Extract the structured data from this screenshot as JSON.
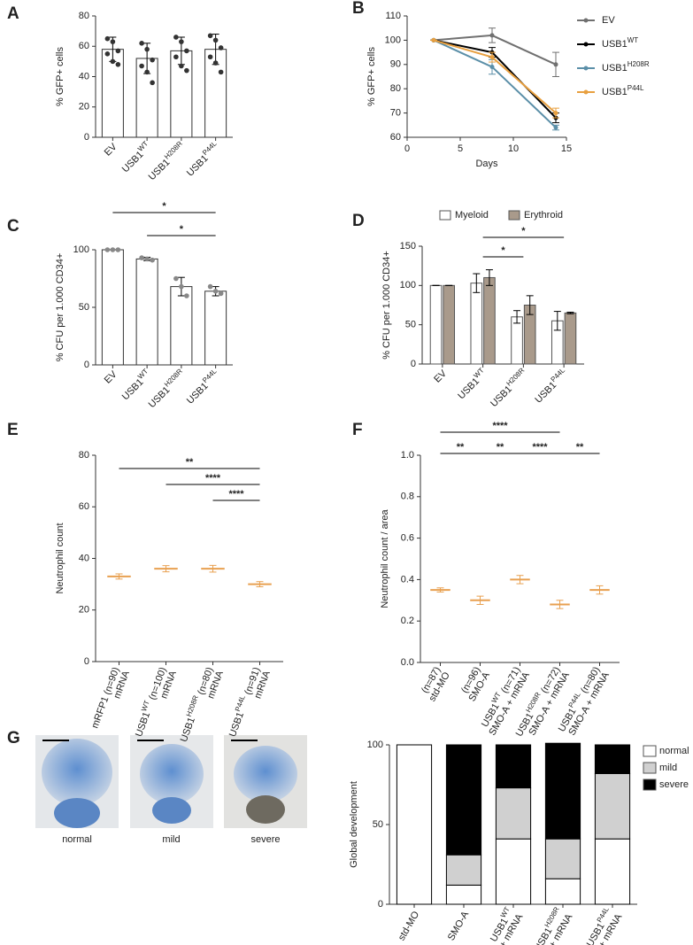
{
  "chart_data": [
    {
      "panel": "A",
      "type": "bar",
      "ylabel": "% GFP+ cells",
      "categories": [
        [
          [
            "EV"
          ]
        ],
        [
          [
            "USB1",
            {
              "sup": "WT"
            }
          ]
        ],
        [
          [
            "USB1",
            {
              "sup": "H208R"
            }
          ]
        ],
        [
          [
            "USB1",
            {
              "sup": "P44L"
            }
          ]
        ]
      ],
      "values": [
        58,
        52,
        57,
        58
      ],
      "errors": [
        8,
        10,
        9,
        10
      ],
      "points": [
        [
          65,
          63,
          57,
          55,
          50,
          48
        ],
        [
          62,
          58,
          51,
          47,
          43,
          36
        ],
        [
          66,
          63,
          57,
          53,
          47,
          44
        ],
        [
          67,
          64,
          59,
          53,
          49,
          43
        ]
      ],
      "color": "#ffffff",
      "point_color": "#333333",
      "ylim": [
        0,
        80
      ],
      "yticks": [
        0,
        20,
        40,
        60,
        80
      ]
    },
    {
      "panel": "B",
      "type": "line",
      "xlabel": "Days",
      "ylabel": "% GFP+ cells",
      "x": [
        2.5,
        8,
        14
      ],
      "xlim": [
        0,
        15
      ],
      "xticks": [
        0,
        5,
        10,
        15
      ],
      "ylim": [
        60,
        110
      ],
      "yticks": [
        60,
        70,
        80,
        90,
        100,
        110
      ],
      "series": [
        {
          "name": [
            "EV"
          ],
          "color": "#707070",
          "values": [
            100,
            102,
            90
          ],
          "errors": [
            0,
            3,
            5
          ]
        },
        {
          "name": [
            "USB1",
            {
              "sup": "WT"
            }
          ],
          "color": "#000000",
          "values": [
            100,
            95,
            68
          ],
          "errors": [
            0,
            2,
            2
          ]
        },
        {
          "name": [
            "USB1",
            {
              "sup": "H208R"
            }
          ],
          "color": "#5b8fa8",
          "values": [
            100,
            89,
            64
          ],
          "errors": [
            0,
            3,
            1
          ]
        },
        {
          "name": [
            "USB1",
            {
              "sup": "P44L"
            }
          ],
          "color": "#e8a040",
          "values": [
            100,
            93,
            70
          ],
          "errors": [
            0,
            2,
            2
          ]
        }
      ]
    },
    {
      "panel": "C",
      "type": "bar",
      "ylabel": "% CFU per 1.000 CD34+",
      "categories": [
        [
          [
            "EV"
          ]
        ],
        [
          [
            "USB1",
            {
              "sup": "WT"
            }
          ]
        ],
        [
          [
            "USB1",
            {
              "sup": "H208R"
            }
          ]
        ],
        [
          [
            "USB1",
            {
              "sup": "P44L"
            }
          ]
        ]
      ],
      "values": [
        100,
        92,
        68,
        64
      ],
      "errors": [
        0,
        1.5,
        8,
        4
      ],
      "points": [
        [
          100,
          100,
          100
        ],
        [
          93,
          92,
          91
        ],
        [
          75,
          68,
          60
        ],
        [
          68,
          64,
          62
        ]
      ],
      "color": "#ffffff",
      "point_color": "#888888",
      "ylim": [
        0,
        100
      ],
      "yticks": [
        0,
        50,
        100
      ],
      "significance": [
        {
          "from": 0,
          "to": 3,
          "label": "*"
        },
        {
          "from": 1,
          "to": 3,
          "label": "*"
        }
      ]
    },
    {
      "panel": "D",
      "type": "grouped_bar",
      "ylabel": "% CFU per 1.000 CD34+",
      "categories": [
        [
          [
            "EV"
          ]
        ],
        [
          [
            "USB1",
            {
              "sup": "WT"
            }
          ]
        ],
        [
          [
            "USB1",
            {
              "sup": "H208R"
            }
          ]
        ],
        [
          [
            "USB1",
            {
              "sup": "P44L"
            }
          ]
        ]
      ],
      "series": [
        {
          "name": [
            "Myeloid"
          ],
          "color": "#ffffff",
          "values": [
            100,
            103,
            60,
            55
          ],
          "errors": [
            0,
            12,
            8,
            12
          ]
        },
        {
          "name": [
            "Erythroid"
          ],
          "color": "#a99a8b",
          "values": [
            100,
            110,
            75,
            65
          ],
          "errors": [
            0,
            10,
            12,
            1
          ]
        }
      ],
      "ylim": [
        0,
        150
      ],
      "yticks": [
        0,
        50,
        100,
        150
      ],
      "significance": [
        {
          "from": 1,
          "to": 2,
          "label": "*"
        },
        {
          "from": 1,
          "to": 3,
          "label": "*"
        }
      ]
    },
    {
      "panel": "E",
      "type": "dot",
      "ylabel": "Neutrophil count",
      "categories": [
        [
          [
            "mRNA"
          ],
          [
            "mRFP1 (n=90)"
          ]
        ],
        [
          [
            "mRNA"
          ],
          [
            "USB1",
            {
              "sup": "WT"
            },
            " (n=100)"
          ]
        ],
        [
          [
            "mRNA"
          ],
          [
            "USB1",
            {
              "sup": "H208R"
            },
            " (n=80)"
          ]
        ],
        [
          [
            "mRNA"
          ],
          [
            "USB1",
            {
              "sup": "P44L"
            },
            " (n=91)"
          ]
        ]
      ],
      "values": [
        33,
        36,
        36,
        30
      ],
      "errors": [
        1,
        1.2,
        1.3,
        1
      ],
      "color": "#e8a050",
      "ylim": [
        0,
        80
      ],
      "yticks": [
        0,
        20,
        40,
        60,
        80
      ],
      "significance": [
        {
          "from": 0,
          "to": 3,
          "label": "**"
        },
        {
          "from": 1,
          "to": 3,
          "label": "****"
        },
        {
          "from": 2,
          "to": 3,
          "label": "****"
        }
      ]
    },
    {
      "panel": "F",
      "type": "dot",
      "ylabel": "Neutrophil count / area",
      "categories": [
        [
          [
            "std-MO"
          ],
          [
            "(n=87)"
          ]
        ],
        [
          [
            "SMO-A"
          ],
          [
            "(n=96)"
          ]
        ],
        [
          [
            "SMO-A + mRNA"
          ],
          [
            "USB1",
            {
              "sup": "WT"
            },
            " (n=71)"
          ]
        ],
        [
          [
            "SMO-A + mRNA"
          ],
          [
            "USB1",
            {
              "sup": "H208R"
            },
            " (n=72)"
          ]
        ],
        [
          [
            "SMO-A + mRNA"
          ],
          [
            "USB1",
            {
              "sup": "P44L"
            },
            " (n=80)"
          ]
        ]
      ],
      "values": [
        0.35,
        0.3,
        0.4,
        0.28,
        0.35
      ],
      "errors": [
        0.01,
        0.02,
        0.02,
        0.02,
        0.02
      ],
      "color": "#e8a050",
      "ylim": [
        0,
        1
      ],
      "yticks": [
        {
          "value": 0,
          "label": "0.0"
        },
        0.2,
        0.4,
        0.6,
        0.8,
        {
          "value": 1,
          "label": "1.0"
        }
      ],
      "significance": [
        {
          "from": 0,
          "to": 1,
          "label": "**"
        },
        {
          "from": 1,
          "to": 2,
          "label": "**"
        },
        {
          "from": 2,
          "to": 3,
          "label": "****"
        },
        {
          "from": 3,
          "to": 4,
          "label": "**"
        },
        {
          "from": 0,
          "to": 3,
          "label": "****"
        }
      ]
    },
    {
      "panel_key": "G",
      "type": "stacked_bar",
      "ylabel": "Global development",
      "categories": [
        [
          [
            "std-MO"
          ]
        ],
        [
          [
            "SMO-A"
          ]
        ],
        [
          [
            "SMO-A + mRNA"
          ],
          [
            "USB1",
            {
              "sup": "WT"
            }
          ]
        ],
        [
          [
            "SMO-A + mRNA"
          ],
          [
            "USB1",
            {
              "sup": "H208R"
            }
          ]
        ],
        [
          [
            "SMO-A + mRNA"
          ],
          [
            "USB1",
            {
              "sup": "P44L"
            }
          ]
        ]
      ],
      "series": [
        {
          "name": [
            "normal"
          ],
          "color": "#ffffff",
          "values": [
            100,
            12,
            41,
            16,
            41
          ]
        },
        {
          "name": [
            "mild"
          ],
          "color": "#d0d0d0",
          "values": [
            0,
            19,
            32,
            25,
            41
          ]
        },
        {
          "name": [
            "severe"
          ],
          "color": "#000000",
          "values": [
            0,
            69,
            27,
            60,
            18
          ]
        }
      ],
      "ylim": [
        0,
        100
      ],
      "yticks": [
        0,
        50,
        100
      ]
    }
  ],
  "panel_g": {
    "panel": "G",
    "image_labels": [
      "normal",
      "mild",
      "severe"
    ]
  }
}
